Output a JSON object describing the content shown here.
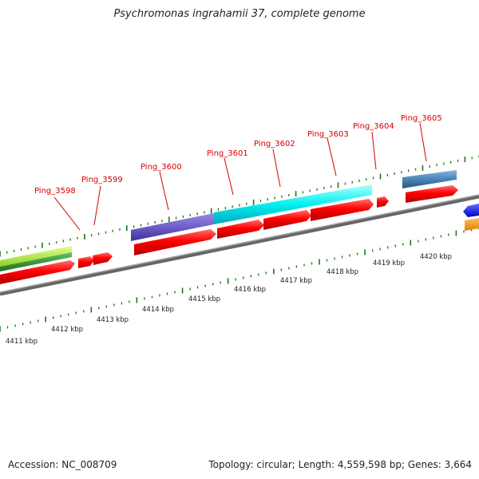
{
  "title": "Psychromonas ingrahamii 37, complete genome",
  "accession": "Accession: NC_008709",
  "summary": "Topology: circular; Length: 4,559,598 bp; Genes: 3,664",
  "colors": {
    "gene_label": "#d40000",
    "cds": "#ff0000",
    "backbone": "#777777",
    "tick": "#1a7a1a"
  },
  "scale_labels": [
    "4411 kbp",
    "4412 kbp",
    "4413 kbp",
    "4414 kbp",
    "4415 kbp",
    "4416 kbp",
    "4417 kbp",
    "4418 kbp",
    "4419 kbp",
    "4420 kbp"
  ],
  "genes": [
    {
      "label": "Ping_3598",
      "feature_color": ""
    },
    {
      "label": "Ping_3599",
      "feature_color": ""
    },
    {
      "label": "Ping_3600",
      "feature_color": "#7a6bd0"
    },
    {
      "label": "Ping_3601",
      "feature_color": "#00f0f0"
    },
    {
      "label": "Ping_3602",
      "feature_color": "#00f0f0"
    },
    {
      "label": "Ping_3603",
      "feature_color": "#00f0f0"
    },
    {
      "label": "Ping_3604",
      "feature_color": ""
    },
    {
      "label": "Ping_3605",
      "feature_color": "#4a84b8"
    }
  ]
}
